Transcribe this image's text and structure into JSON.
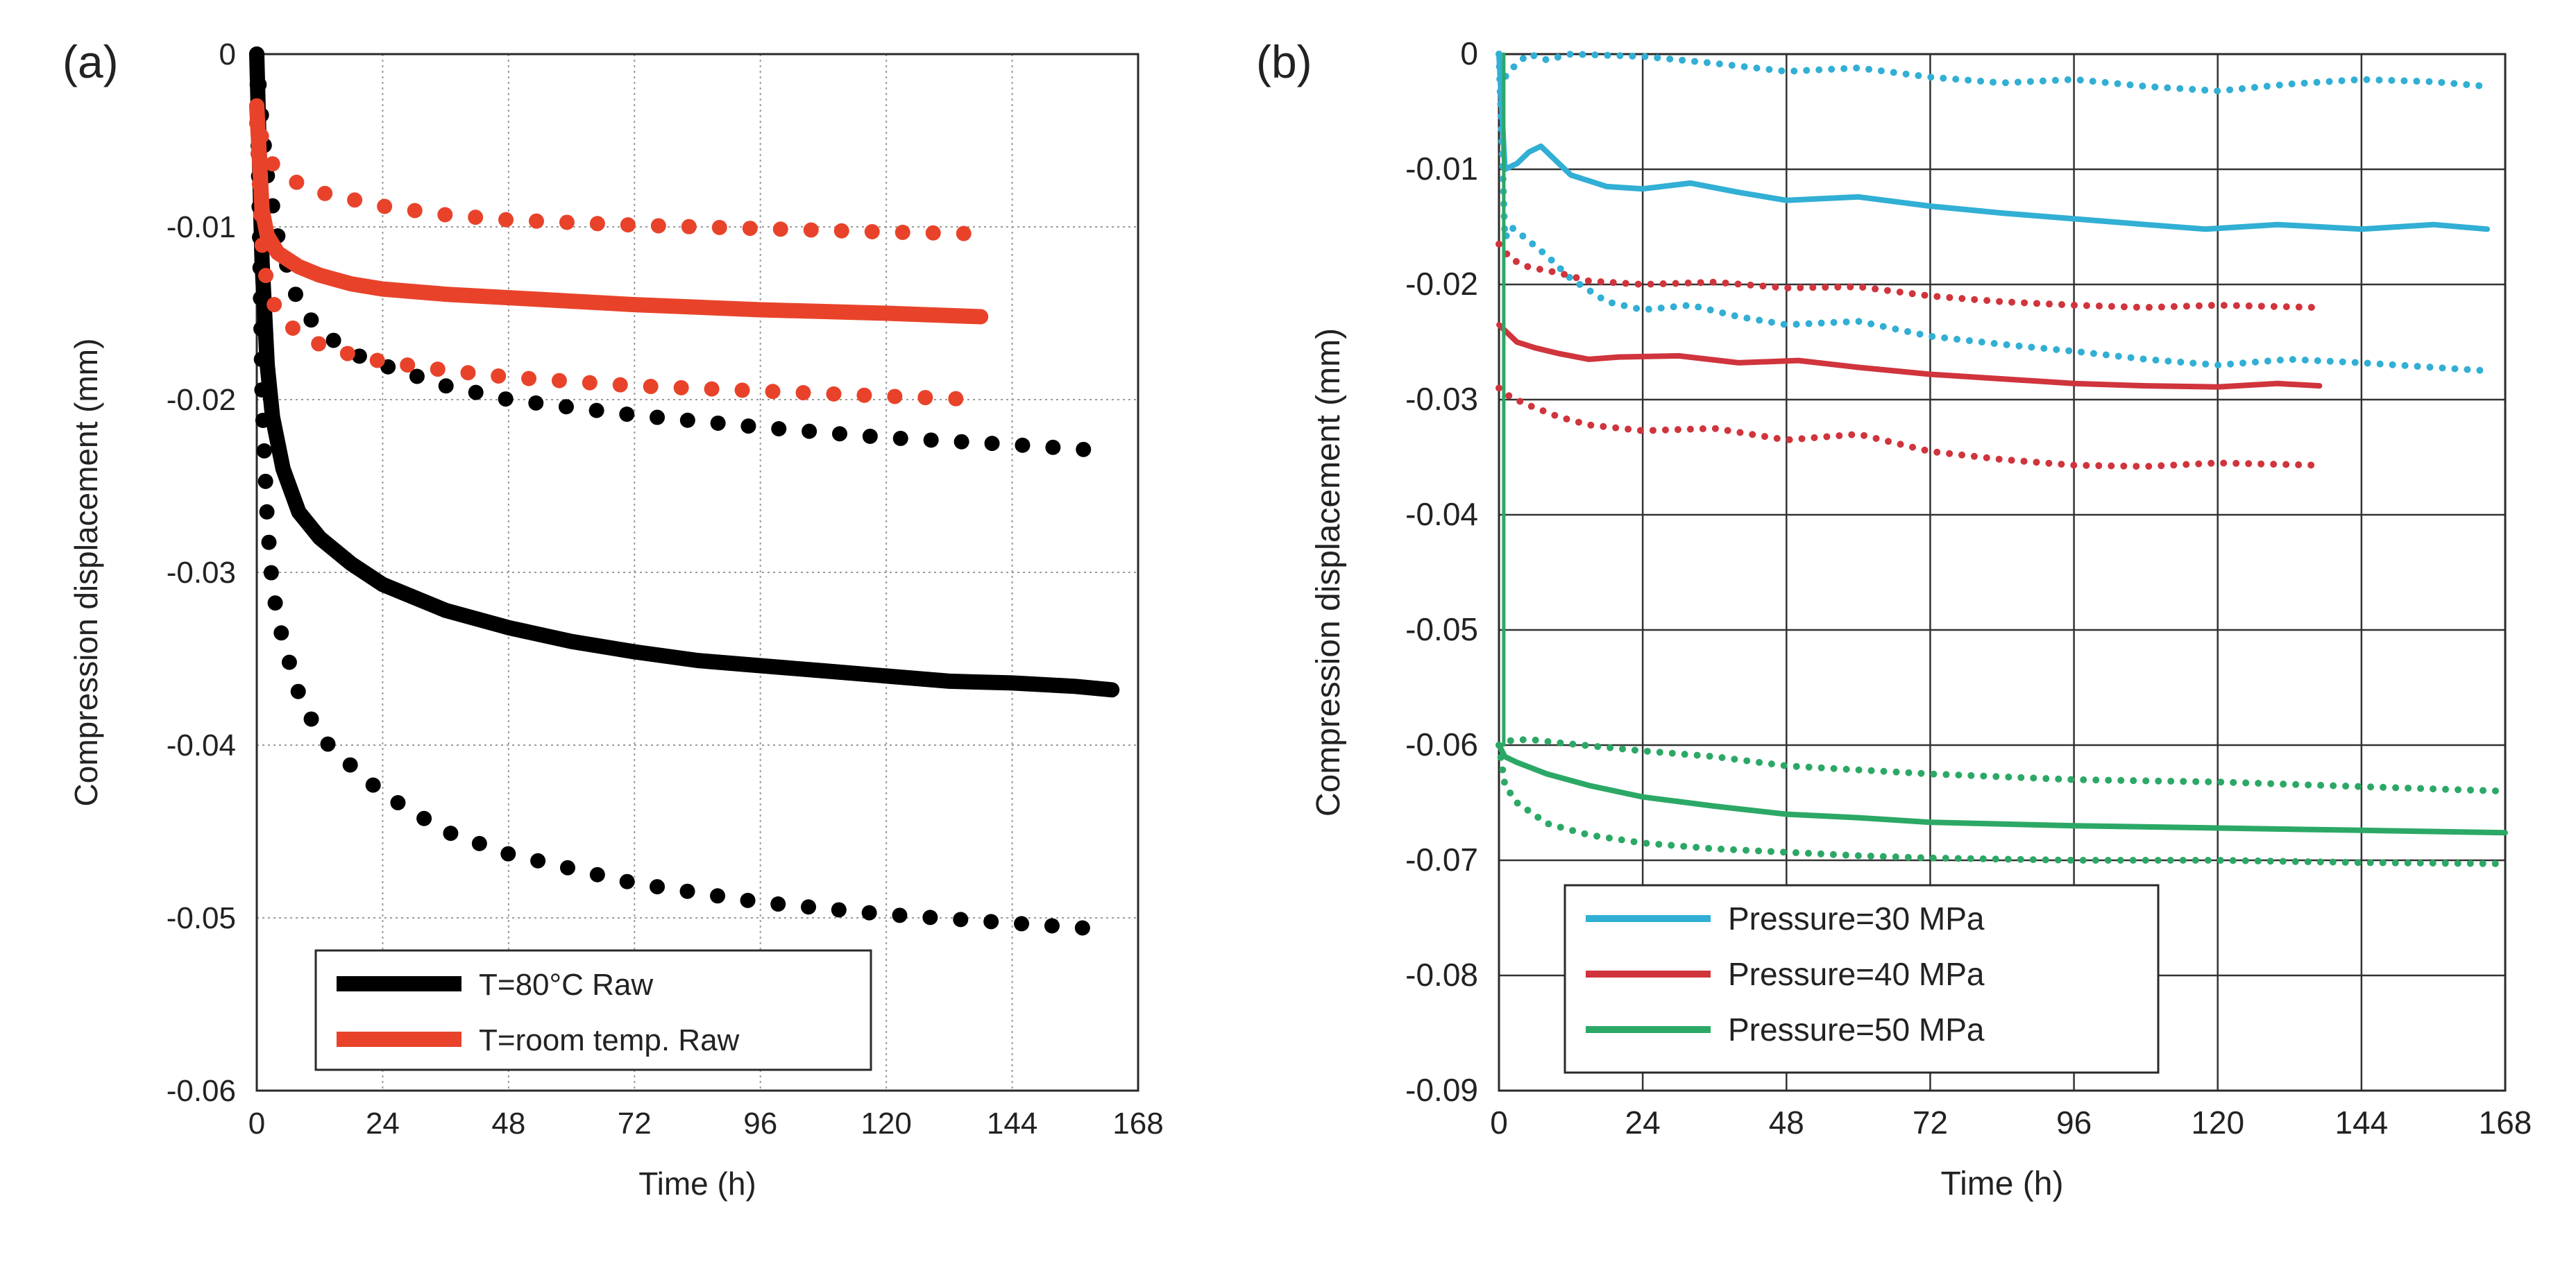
{
  "chart_data": [
    {
      "type": "line",
      "panel_label": "(a)",
      "xlabel": "Time (h)",
      "ylabel": "Compression displacement (mm)",
      "xlim": [
        0,
        168
      ],
      "ylim": [
        -0.06,
        0
      ],
      "xticks": [
        0,
        24,
        48,
        72,
        96,
        120,
        144,
        168
      ],
      "xtick_labels": [
        "0",
        "24",
        "48",
        "72",
        "96",
        "120",
        "144",
        "168"
      ],
      "yticks": [
        0,
        -0.01,
        -0.02,
        -0.03,
        -0.04,
        -0.05,
        -0.06
      ],
      "ytick_labels": [
        "0",
        "-0.01",
        "-0.02",
        "-0.03",
        "-0.04",
        "-0.05",
        "-0.06"
      ],
      "grid": true,
      "legend_position": "bottom-center",
      "legend": [
        "T=80°C Raw",
        "T=room temp. Raw"
      ],
      "series": [
        {
          "name": "T=80°C Raw",
          "color": "#000000",
          "style": "solid",
          "legend": true,
          "x": [
            0,
            1,
            2,
            3,
            5,
            8,
            12,
            18,
            24,
            36,
            48,
            60,
            72,
            84,
            96,
            108,
            120,
            132,
            144,
            156,
            163
          ],
          "y": [
            0,
            -0.012,
            -0.018,
            -0.021,
            -0.024,
            -0.0265,
            -0.028,
            -0.0295,
            -0.0307,
            -0.0322,
            -0.0332,
            -0.034,
            -0.0346,
            -0.0351,
            -0.0354,
            -0.0357,
            -0.036,
            -0.0363,
            -0.0364,
            -0.0366,
            -0.0368
          ]
        },
        {
          "name": "T=80°C upper",
          "color": "#000000",
          "style": "dotted",
          "legend": false,
          "x": [
            0,
            1,
            2,
            4,
            8,
            12,
            18,
            24,
            36,
            48,
            72,
            96,
            120,
            144,
            163
          ],
          "y": [
            0,
            -0.004,
            -0.007,
            -0.0105,
            -0.0145,
            -0.016,
            -0.0173,
            -0.018,
            -0.0192,
            -0.02,
            -0.0209,
            -0.0216,
            -0.0222,
            -0.0226,
            -0.023
          ]
        },
        {
          "name": "T=80°C lower",
          "color": "#000000",
          "style": "dotted",
          "legend": false,
          "x": [
            0,
            1,
            2,
            3,
            5,
            8,
            12,
            18,
            24,
            36,
            48,
            72,
            96,
            120,
            144,
            163
          ],
          "y": [
            0,
            -0.02,
            -0.027,
            -0.031,
            -0.034,
            -0.037,
            -0.0395,
            -0.0412,
            -0.0428,
            -0.045,
            -0.0463,
            -0.048,
            -0.0491,
            -0.0498,
            -0.0503,
            -0.0507
          ]
        },
        {
          "name": "T=room temp. Raw",
          "color": "#e8432a",
          "style": "solid",
          "legend": true,
          "x": [
            0,
            1,
            2,
            4,
            8,
            12,
            18,
            24,
            36,
            48,
            60,
            72,
            96,
            120,
            138
          ],
          "y": [
            -0.003,
            -0.009,
            -0.0105,
            -0.0115,
            -0.0123,
            -0.0128,
            -0.0133,
            -0.0136,
            -0.0139,
            -0.0141,
            -0.0143,
            -0.0145,
            -0.0148,
            -0.015,
            -0.0152
          ]
        },
        {
          "name": "T=room temp. upper",
          "color": "#e8432a",
          "style": "dotted",
          "legend": false,
          "x": [
            0,
            1,
            2,
            4,
            8,
            12,
            24,
            36,
            48,
            72,
            96,
            120,
            138
          ],
          "y": [
            -0.003,
            -0.005,
            -0.006,
            -0.0067,
            -0.0075,
            -0.008,
            -0.0088,
            -0.0093,
            -0.0096,
            -0.0099,
            -0.0101,
            -0.0103,
            -0.0104
          ]
        },
        {
          "name": "T=room temp. lower",
          "color": "#e8432a",
          "style": "dotted",
          "legend": false,
          "x": [
            0,
            1,
            2,
            4,
            8,
            12,
            18,
            24,
            36,
            48,
            72,
            96,
            120,
            138
          ],
          "y": [
            -0.004,
            -0.011,
            -0.0135,
            -0.015,
            -0.0162,
            -0.0168,
            -0.0174,
            -0.0178,
            -0.0183,
            -0.0187,
            -0.0192,
            -0.0195,
            -0.0198,
            -0.02
          ]
        }
      ]
    },
    {
      "type": "line",
      "panel_label": "(b)",
      "xlabel": "Time (h)",
      "ylabel": "Compression displacement (mm)",
      "xlim": [
        0,
        168
      ],
      "ylim": [
        -0.09,
        0
      ],
      "xticks": [
        0,
        24,
        48,
        72,
        96,
        120,
        144,
        168
      ],
      "xtick_labels": [
        "0",
        "24",
        "48",
        "72",
        "96",
        "120",
        "144",
        "168"
      ],
      "yticks": [
        0,
        -0.01,
        -0.02,
        -0.03,
        -0.04,
        -0.05,
        -0.06,
        -0.07,
        -0.08,
        -0.09
      ],
      "ytick_labels": [
        "0",
        "-0.01",
        "-0.02",
        "-0.03",
        "-0.04",
        "-0.05",
        "-0.06",
        "-0.07",
        "-0.08",
        "-0.09"
      ],
      "grid": true,
      "legend_position": "bottom-left",
      "legend": [
        "Pressure=30 MPa",
        "Pressure=40 MPa",
        "Pressure=50 MPa"
      ],
      "series": [
        {
          "name": "Pressure=30 MPa",
          "color": "#31afd4",
          "style": "solid",
          "legend": true,
          "x": [
            0,
            1,
            3,
            5,
            7,
            9,
            12,
            18,
            24,
            32,
            40,
            48,
            60,
            72,
            84,
            96,
            108,
            118,
            130,
            144,
            156,
            165
          ],
          "y": [
            0,
            -0.01,
            -0.0095,
            -0.0085,
            -0.008,
            -0.009,
            -0.0105,
            -0.0115,
            -0.0117,
            -0.0112,
            -0.012,
            -0.0127,
            -0.0124,
            -0.0132,
            -0.0138,
            -0.0143,
            -0.0148,
            -0.0152,
            -0.0148,
            -0.0152,
            -0.0148,
            -0.0152
          ]
        },
        {
          "name": "Pressure=30 MPa upper",
          "color": "#31afd4",
          "style": "dotted",
          "legend": false,
          "x": [
            0,
            1,
            3,
            5,
            8,
            12,
            24,
            36,
            48,
            60,
            72,
            84,
            96,
            108,
            120,
            132,
            144,
            156,
            165
          ],
          "y": [
            0,
            -0.002,
            -0.0008,
            0,
            -0.0005,
            0,
            -0.0002,
            -0.0008,
            -0.0015,
            -0.0012,
            -0.002,
            -0.0025,
            -0.0022,
            -0.0028,
            -0.0032,
            -0.0026,
            -0.0022,
            -0.0024,
            -0.0028
          ]
        },
        {
          "name": "Pressure=30 MPa lower",
          "color": "#31afd4",
          "style": "dotted",
          "legend": false,
          "x": [
            0,
            1,
            2,
            4,
            8,
            12,
            18,
            24,
            32,
            40,
            48,
            60,
            72,
            84,
            96,
            108,
            120,
            132,
            144,
            156,
            165
          ],
          "y": [
            0,
            -0.016,
            -0.015,
            -0.0158,
            -0.0175,
            -0.0195,
            -0.0215,
            -0.0222,
            -0.0218,
            -0.0228,
            -0.0235,
            -0.0232,
            -0.0245,
            -0.0252,
            -0.0258,
            -0.0265,
            -0.027,
            -0.0265,
            -0.0268,
            -0.0272,
            -0.0275
          ]
        },
        {
          "name": "Pressure=40 MPa",
          "color": "#d0343c",
          "style": "solid",
          "legend": true,
          "x": [
            0,
            1,
            3,
            6,
            10,
            15,
            20,
            30,
            40,
            50,
            60,
            72,
            84,
            96,
            108,
            120,
            130,
            137
          ],
          "y": [
            -0.0235,
            -0.024,
            -0.025,
            -0.0255,
            -0.026,
            -0.0265,
            -0.0263,
            -0.0262,
            -0.0268,
            -0.0266,
            -0.0272,
            -0.0278,
            -0.0282,
            -0.0286,
            -0.0288,
            -0.0289,
            -0.0286,
            -0.0288
          ]
        },
        {
          "name": "Pressure=40 MPa upper",
          "color": "#d0343c",
          "style": "dotted",
          "legend": false,
          "x": [
            0,
            2,
            5,
            10,
            15,
            24,
            36,
            48,
            60,
            72,
            84,
            96,
            108,
            120,
            137
          ],
          "y": [
            -0.0165,
            -0.0178,
            -0.0185,
            -0.019,
            -0.0197,
            -0.02,
            -0.0198,
            -0.0203,
            -0.0202,
            -0.021,
            -0.0215,
            -0.0218,
            -0.022,
            -0.0218,
            -0.022
          ]
        },
        {
          "name": "Pressure=40 MPa lower",
          "color": "#d0343c",
          "style": "dotted",
          "legend": false,
          "x": [
            0,
            2,
            5,
            10,
            15,
            24,
            36,
            48,
            60,
            72,
            84,
            96,
            108,
            120,
            137
          ],
          "y": [
            -0.029,
            -0.0298,
            -0.0305,
            -0.0315,
            -0.0322,
            -0.0327,
            -0.0325,
            -0.0335,
            -0.033,
            -0.0345,
            -0.0352,
            -0.0357,
            -0.0358,
            -0.0355,
            -0.0357
          ]
        },
        {
          "name": "Pressure=50 MPa",
          "color": "#2ca866",
          "style": "solid",
          "legend": true,
          "x": [
            0,
            1,
            3,
            8,
            15,
            24,
            36,
            48,
            60,
            72,
            96,
            120,
            144,
            168
          ],
          "y": [
            -0.06,
            -0.061,
            -0.0615,
            -0.0625,
            -0.0635,
            -0.0645,
            -0.0653,
            -0.066,
            -0.0663,
            -0.0667,
            -0.067,
            -0.0672,
            -0.0674,
            -0.0676
          ]
        },
        {
          "name": "Pressure=50 MPa upper",
          "color": "#2ca866",
          "style": "dotted",
          "legend": false,
          "x": [
            0,
            2,
            5,
            10,
            24,
            36,
            48,
            72,
            96,
            120,
            144,
            168
          ],
          "y": [
            -0.06,
            -0.0596,
            -0.0595,
            -0.0598,
            -0.0605,
            -0.061,
            -0.0618,
            -0.0625,
            -0.063,
            -0.0632,
            -0.0636,
            -0.064
          ]
        },
        {
          "name": "Pressure=50 MPa lower",
          "color": "#2ca866",
          "style": "dotted",
          "legend": false,
          "x": [
            0,
            1,
            3,
            8,
            15,
            24,
            36,
            48,
            60,
            72,
            96,
            120,
            144,
            168
          ],
          "y": [
            -0.06,
            -0.0635,
            -0.065,
            -0.0668,
            -0.0678,
            -0.0685,
            -0.069,
            -0.0693,
            -0.0696,
            -0.0698,
            -0.07,
            -0.07,
            -0.0702,
            -0.0703
          ]
        },
        {
          "name": "initial-loading-spike",
          "color": "#2ca866",
          "style": "solid",
          "legend": false,
          "x": [
            0.8,
            0.8
          ],
          "y": [
            0,
            -0.06
          ]
        }
      ]
    }
  ]
}
